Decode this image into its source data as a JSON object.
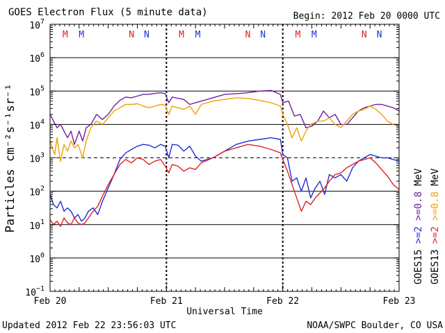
{
  "chart_data": {
    "type": "line",
    "title": "GOES Electron Flux (5 minute data)",
    "begin_label": "Begin: 2012 Feb 20 0000 UTC",
    "xlabel": "Universal Time",
    "ylabel": "Particles cm⁻²s⁻¹sr⁻¹",
    "x_unit": "days since 2012 Feb 20 0000 UTC",
    "xlim": [
      0,
      3
    ],
    "ylim_log10": [
      -1,
      7
    ],
    "x_ticks": [
      {
        "x": 0,
        "label": "Feb 20"
      },
      {
        "x": 1,
        "label": "Feb 21"
      },
      {
        "x": 2,
        "label": "Feb 22"
      },
      {
        "x": 3,
        "label": "Feb 23"
      }
    ],
    "y_ticks": [
      {
        "exp": -1,
        "base": "10",
        "sup": "−1"
      },
      {
        "exp": 0,
        "base": "10",
        "sup": "0"
      },
      {
        "exp": 1,
        "base": "10",
        "sup": "1"
      },
      {
        "exp": 2,
        "base": "10",
        "sup": "2"
      },
      {
        "exp": 3,
        "base": "10",
        "sup": "3"
      },
      {
        "exp": 4,
        "base": "10",
        "sup": "4"
      },
      {
        "exp": 5,
        "base": "10",
        "sup": "5"
      },
      {
        "exp": 6,
        "base": "10",
        "sup": "6"
      },
      {
        "exp": 7,
        "base": "10",
        "sup": "7"
      }
    ],
    "threshold_line_log10": 3,
    "markers": [
      {
        "x": 0.13,
        "label": "M",
        "color": "#e02020"
      },
      {
        "x": 0.27,
        "label": "M",
        "color": "#2030d0"
      },
      {
        "x": 0.7,
        "label": "N",
        "color": "#e02020"
      },
      {
        "x": 0.83,
        "label": "N",
        "color": "#2030d0"
      },
      {
        "x": 1.13,
        "label": "M",
        "color": "#e02020"
      },
      {
        "x": 1.27,
        "label": "M",
        "color": "#2030d0"
      },
      {
        "x": 1.7,
        "label": "N",
        "color": "#e02020"
      },
      {
        "x": 1.83,
        "label": "N",
        "color": "#2030d0"
      },
      {
        "x": 2.13,
        "label": "M",
        "color": "#e02020"
      },
      {
        "x": 2.27,
        "label": "M",
        "color": "#2030d0"
      },
      {
        "x": 2.7,
        "label": "N",
        "color": "#e02020"
      },
      {
        "x": 2.83,
        "label": "N",
        "color": "#2030d0"
      }
    ],
    "legend_position": "right, vertical",
    "legend": [
      {
        "text": "GOES13",
        "color": "#000000"
      },
      {
        "text": ">=2",
        "color": "#e02020"
      },
      {
        "text": ">=0.8",
        "color": "#f0a000"
      },
      {
        "text": "MeV",
        "color": "#000000"
      },
      {
        "text": "GOES15",
        "color": "#000000"
      },
      {
        "text": ">=2",
        "color": "#2030d0"
      },
      {
        "text": ">=0.8",
        "color": "#7020a0"
      },
      {
        "text": "MeV",
        "color": "#000000"
      }
    ],
    "series": [
      {
        "name": "GOES15 >=0.8 MeV",
        "color": "#7020a0",
        "x": [
          0,
          0.03,
          0.06,
          0.09,
          0.12,
          0.15,
          0.18,
          0.21,
          0.25,
          0.28,
          0.31,
          0.35,
          0.4,
          0.45,
          0.5,
          0.55,
          0.6,
          0.65,
          0.7,
          0.75,
          0.8,
          0.85,
          0.9,
          0.95,
          0.99,
          1.02,
          1.05,
          1.1,
          1.15,
          1.2,
          1.25,
          1.3,
          1.4,
          1.5,
          1.6,
          1.7,
          1.8,
          1.9,
          1.98,
          2.0,
          2.05,
          2.1,
          2.15,
          2.2,
          2.25,
          2.3,
          2.35,
          2.4,
          2.45,
          2.5,
          2.55,
          2.6,
          2.65,
          2.7,
          2.75,
          2.8,
          2.85,
          2.9,
          2.95,
          3.0
        ],
        "log10": [
          4.3,
          4.1,
          3.9,
          4.0,
          3.8,
          3.6,
          3.8,
          3.4,
          3.8,
          3.5,
          3.9,
          4.0,
          4.3,
          4.15,
          4.3,
          4.55,
          4.72,
          4.82,
          4.8,
          4.85,
          4.9,
          4.9,
          4.93,
          4.95,
          4.92,
          4.65,
          4.82,
          4.78,
          4.75,
          4.6,
          4.65,
          4.7,
          4.8,
          4.9,
          4.92,
          4.95,
          5.0,
          5.02,
          4.9,
          4.65,
          4.7,
          4.25,
          4.3,
          3.9,
          3.95,
          4.1,
          4.4,
          4.2,
          4.3,
          4.0,
          4.0,
          4.2,
          4.4,
          4.5,
          4.55,
          4.6,
          4.6,
          4.55,
          4.5,
          4.4
        ]
      },
      {
        "name": "GOES13 >=0.8 MeV",
        "color": "#f0a000",
        "x": [
          0,
          0.02,
          0.04,
          0.06,
          0.09,
          0.12,
          0.15,
          0.18,
          0.21,
          0.24,
          0.28,
          0.31,
          0.35,
          0.4,
          0.45,
          0.5,
          0.55,
          0.6,
          0.65,
          0.7,
          0.75,
          0.8,
          0.85,
          0.9,
          0.95,
          0.99,
          1.02,
          1.05,
          1.1,
          1.15,
          1.2,
          1.25,
          1.3,
          1.4,
          1.5,
          1.6,
          1.7,
          1.8,
          1.9,
          1.98,
          2.0,
          2.04,
          2.08,
          2.12,
          2.16,
          2.2,
          2.24,
          2.3,
          2.35,
          2.4,
          2.45,
          2.5,
          2.55,
          2.6,
          2.65,
          2.7,
          2.75,
          2.8,
          2.85,
          2.9,
          2.95,
          3.0
        ],
        "log10": [
          3.5,
          3.3,
          3.1,
          3.6,
          2.9,
          3.4,
          3.2,
          3.5,
          3.3,
          3.4,
          3.0,
          3.5,
          3.9,
          4.1,
          4.0,
          4.2,
          4.4,
          4.5,
          4.6,
          4.6,
          4.62,
          4.55,
          4.5,
          4.55,
          4.6,
          4.58,
          4.3,
          4.55,
          4.5,
          4.45,
          4.55,
          4.3,
          4.6,
          4.7,
          4.75,
          4.8,
          4.78,
          4.72,
          4.65,
          4.55,
          4.3,
          4.0,
          3.6,
          3.9,
          3.5,
          3.8,
          4.0,
          4.1,
          4.1,
          4.2,
          4.0,
          3.9,
          4.1,
          4.3,
          4.4,
          4.45,
          4.55,
          4.45,
          4.3,
          4.1,
          4.0,
          3.95
        ]
      },
      {
        "name": "GOES15 >=2 MeV",
        "color": "#2030d0",
        "x": [
          0,
          0.03,
          0.06,
          0.09,
          0.12,
          0.15,
          0.18,
          0.21,
          0.24,
          0.27,
          0.3,
          0.33,
          0.37,
          0.41,
          0.45,
          0.5,
          0.55,
          0.6,
          0.65,
          0.7,
          0.75,
          0.8,
          0.85,
          0.9,
          0.95,
          0.99,
          1.02,
          1.05,
          1.1,
          1.15,
          1.2,
          1.25,
          1.3,
          1.4,
          1.5,
          1.6,
          1.7,
          1.8,
          1.9,
          1.98,
          2.0,
          2.04,
          2.08,
          2.12,
          2.16,
          2.2,
          2.24,
          2.28,
          2.32,
          2.36,
          2.4,
          2.45,
          2.5,
          2.55,
          2.6,
          2.65,
          2.7,
          2.75,
          2.8,
          2.85,
          2.9,
          2.95,
          3.0
        ],
        "log10": [
          1.9,
          1.6,
          1.5,
          1.7,
          1.4,
          1.5,
          1.4,
          1.2,
          1.3,
          1.1,
          1.2,
          1.4,
          1.5,
          1.3,
          1.7,
          2.1,
          2.5,
          2.95,
          3.15,
          3.25,
          3.35,
          3.4,
          3.38,
          3.3,
          3.4,
          3.35,
          3.0,
          3.4,
          3.38,
          3.2,
          3.35,
          3.05,
          2.9,
          3.0,
          3.2,
          3.4,
          3.5,
          3.55,
          3.6,
          3.55,
          3.1,
          3.0,
          2.3,
          2.4,
          2.0,
          2.4,
          1.8,
          2.1,
          2.3,
          1.9,
          2.5,
          2.4,
          2.5,
          2.3,
          2.7,
          2.9,
          3.0,
          3.1,
          3.05,
          3.0,
          3.0,
          2.95,
          2.9
        ]
      },
      {
        "name": "GOES13 >=2 MeV",
        "color": "#e02020",
        "x": [
          0,
          0.03,
          0.06,
          0.09,
          0.12,
          0.15,
          0.18,
          0.21,
          0.24,
          0.27,
          0.3,
          0.33,
          0.37,
          0.41,
          0.45,
          0.5,
          0.55,
          0.6,
          0.65,
          0.7,
          0.75,
          0.8,
          0.85,
          0.9,
          0.95,
          0.99,
          1.02,
          1.05,
          1.1,
          1.15,
          1.2,
          1.25,
          1.3,
          1.4,
          1.5,
          1.6,
          1.7,
          1.8,
          1.9,
          1.98,
          2.0,
          2.04,
          2.08,
          2.12,
          2.16,
          2.2,
          2.24,
          2.28,
          2.32,
          2.36,
          2.4,
          2.45,
          2.5,
          2.55,
          2.6,
          2.65,
          2.7,
          2.75,
          2.8,
          2.85,
          2.9,
          2.95,
          3.0
        ],
        "log10": [
          1.15,
          1.0,
          1.1,
          0.95,
          1.2,
          1.05,
          1.0,
          1.2,
          1.05,
          1.0,
          1.05,
          1.2,
          1.4,
          1.55,
          1.85,
          2.2,
          2.5,
          2.8,
          2.95,
          2.85,
          3.0,
          2.95,
          2.8,
          2.9,
          2.95,
          2.75,
          2.55,
          2.8,
          2.75,
          2.6,
          2.7,
          2.65,
          2.85,
          3.0,
          3.2,
          3.3,
          3.4,
          3.35,
          3.25,
          3.15,
          2.95,
          2.6,
          2.2,
          1.8,
          1.4,
          1.7,
          1.6,
          1.8,
          1.95,
          2.1,
          2.3,
          2.5,
          2.55,
          2.7,
          2.8,
          2.9,
          2.95,
          3.0,
          2.85,
          2.65,
          2.45,
          2.2,
          2.05
        ]
      }
    ]
  },
  "footer": {
    "updated": "Updated 2012 Feb 22 23:56:03 UTC",
    "credit": "NOAA/SWPC Boulder, CO USA"
  }
}
